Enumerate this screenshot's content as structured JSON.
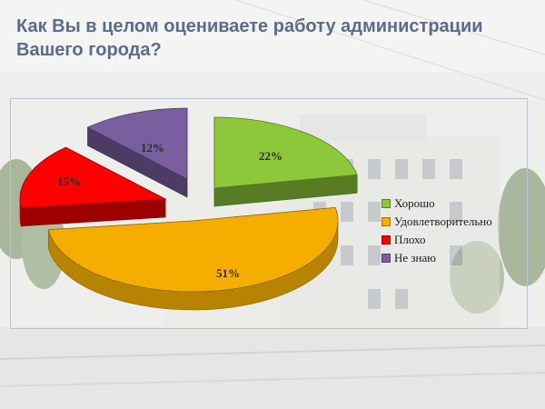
{
  "title": "Как Вы в целом оцениваете работу администрации Вашего города?",
  "colors": {
    "good": "#8cc83a",
    "satisfactory": "#f5ae00",
    "bad": "#ff0000",
    "unknown": "#7a5fa0"
  },
  "chart_data": {
    "type": "pie",
    "title": "Как Вы в целом оцениваете работу администрации Вашего города?",
    "legend_position": "right",
    "slices": [
      {
        "label": "Хорошо",
        "value": 22,
        "value_label": "22%",
        "color": "#8cc83a"
      },
      {
        "label": "Удовлетворительно",
        "value": 51,
        "value_label": "51%",
        "color": "#f5ae00"
      },
      {
        "label": "Плохо",
        "value": 15,
        "value_label": "15%",
        "color": "#ff0000"
      },
      {
        "label": "Не знаю",
        "value": 12,
        "value_label": "12%",
        "color": "#7a5fa0"
      }
    ]
  }
}
